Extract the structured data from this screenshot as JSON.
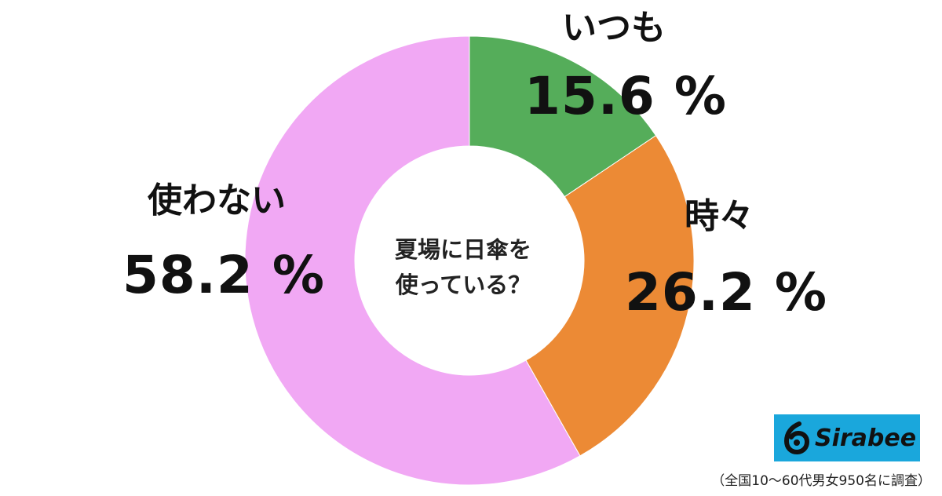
{
  "chart_data": {
    "type": "pie",
    "style": "donut",
    "title": "夏場に日傘を使っている？",
    "title_lines": [
      "夏場に日傘を",
      "使っている？"
    ],
    "series": [
      {
        "name": "",
        "values": [
          {
            "label": "いつも",
            "value": 15.6,
            "value_text": "15.6 %",
            "color": "#55ad5a"
          },
          {
            "label": "時々",
            "value": 26.2,
            "value_text": "26.2 %",
            "color": "#ec8a35"
          },
          {
            "label": "使わない",
            "value": 58.2,
            "value_text": "58.2 %",
            "color": "#f1a8f4"
          }
        ]
      }
    ],
    "start_angle": "12 o'clock",
    "direction": "clockwise",
    "legend": "none"
  },
  "branding": {
    "logo_text": "Sirabee",
    "logo_color": "#1aa7dc"
  },
  "footnote": "（全国10〜60代男女950名に調査）"
}
